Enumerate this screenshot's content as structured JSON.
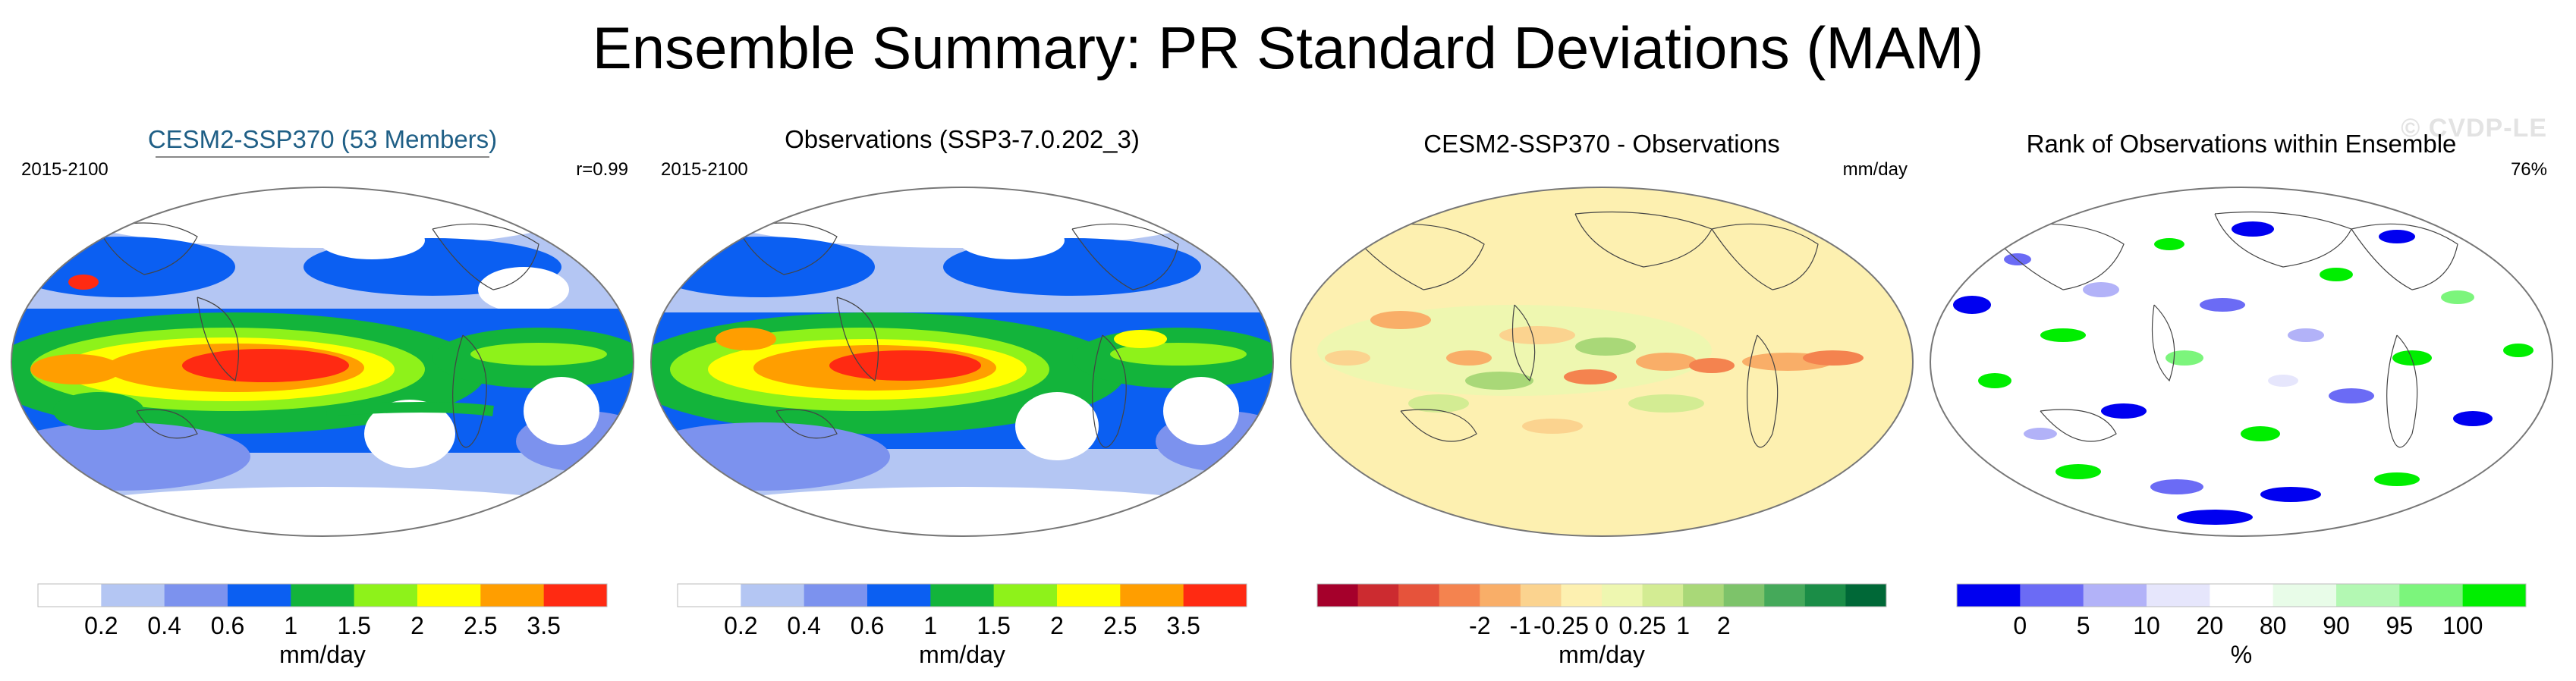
{
  "title": "Ensemble Summary: PR Standard Deviations (MAM)",
  "watermark": "© CVDP-LE",
  "panels": [
    {
      "id": "ensemble",
      "title": "CESM2-SSP370 (53 Members)",
      "left_label": "2015-2100",
      "right_label": "r=0.99",
      "colorbar": {
        "colors": [
          "#ffffff",
          "#b4c6f3",
          "#7c92ee",
          "#0b5ff2",
          "#13b43b",
          "#8ef21a",
          "#ffff00",
          "#ff9e00",
          "#ff2a12"
        ],
        "tick_labels": [
          "0.2",
          "0.4",
          "0.6",
          "1",
          "1.5",
          "2",
          "2.5",
          "3.5"
        ],
        "unit": "mm/day"
      }
    },
    {
      "id": "observations",
      "title": "Observations (SSP3-7.0.202_3)",
      "left_label": "2015-2100",
      "right_label": "",
      "colorbar": {
        "colors": [
          "#ffffff",
          "#b4c6f3",
          "#7c92ee",
          "#0b5ff2",
          "#13b43b",
          "#8ef21a",
          "#ffff00",
          "#ff9e00",
          "#ff2a12"
        ],
        "tick_labels": [
          "0.2",
          "0.4",
          "0.6",
          "1",
          "1.5",
          "2",
          "2.5",
          "3.5"
        ],
        "unit": "mm/day"
      }
    },
    {
      "id": "difference",
      "title": "CESM2-SSP370 - Observations",
      "left_label": "",
      "right_label": "mm/day",
      "colorbar": {
        "colors": [
          "#a5002b",
          "#cc2b30",
          "#e6533b",
          "#f4834f",
          "#f9ae68",
          "#fbd38f",
          "#fdf0b0",
          "#eef7b0",
          "#d3ec93",
          "#a9d878",
          "#7dc36a",
          "#45a95a",
          "#1b8d47",
          "#006837"
        ],
        "tick_labels": [
          "-2",
          "-1",
          "-0.25",
          "0",
          "0.25",
          "1",
          "2"
        ],
        "unit": "mm/day"
      }
    },
    {
      "id": "rank",
      "title": "Rank of Observations within Ensemble",
      "left_label": "",
      "right_label": "76%",
      "colorbar": {
        "colors": [
          "#0000f0",
          "#6b6bf5",
          "#b2b2f8",
          "#e6e6fc",
          "#ffffff",
          "#e8fce8",
          "#b3f8b3",
          "#7cf57c",
          "#00ee00"
        ],
        "tick_labels": [
          "0",
          "5",
          "10",
          "20",
          "80",
          "90",
          "95",
          "100"
        ],
        "unit": "%"
      }
    }
  ]
}
